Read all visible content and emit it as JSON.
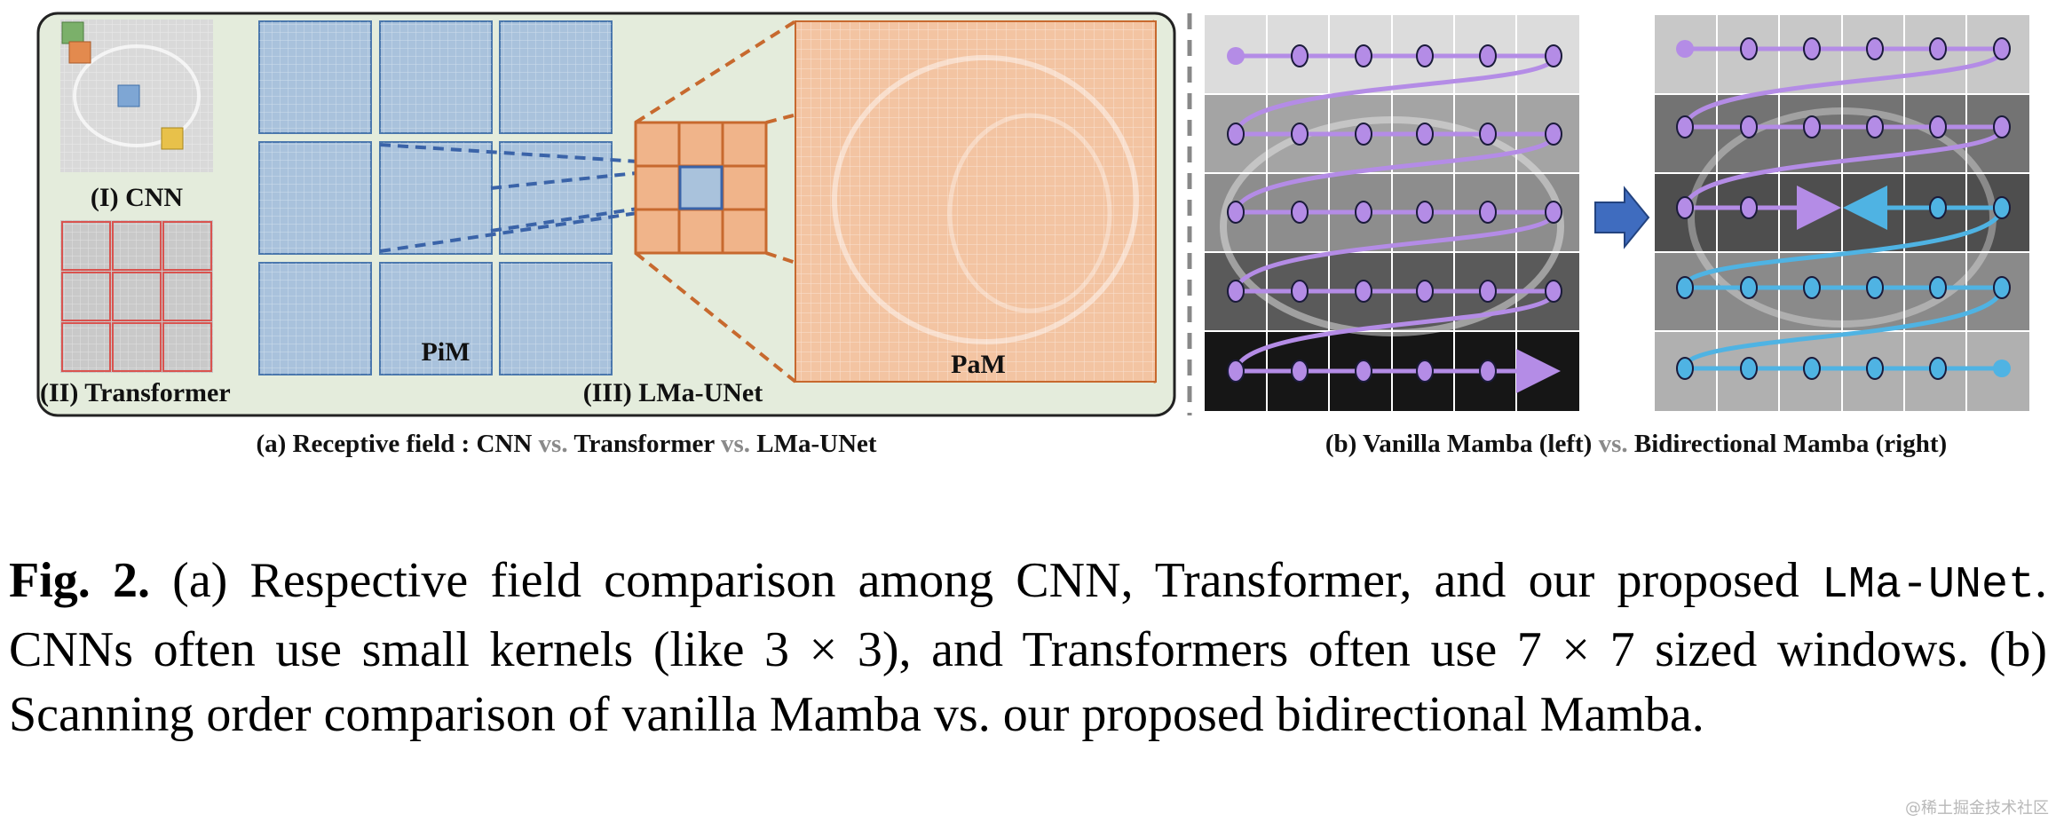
{
  "panel_a": {
    "label_cnn": "(I) CNN",
    "label_transformer": "(II) Transformer",
    "label_pim": "PiM",
    "label_lma": "(III) LMa-UNet",
    "label_pam": "PaM",
    "caption_part1": "(a) Receptive field : CNN",
    "caption_vs1": "vs.",
    "caption_part2": "Transformer",
    "caption_vs2": "vs.",
    "caption_part3": "LMa-UNet"
  },
  "panel_b": {
    "caption_part1": "(b) Vanilla Mamba (left)",
    "caption_vs": "vs.",
    "caption_part2": "Bidirectional Mamba (right)"
  },
  "caption": {
    "fig_num": "Fig. 2.",
    "text1": " (a) Respective field comparison among CNN, Transformer, and our proposed ",
    "code": "LMa-UNet",
    "text2": ". CNNs often use small kernels (like 3 × 3), and Transformers often use 7 × 7 sized windows. (b) Scanning order comparison of vanilla Mamba vs. our proposed bidirectional Mamba."
  },
  "watermark": "@稀土掘金技术社区",
  "colors": {
    "panel_bg": "#e4ecdc",
    "tile_blue": "#a9c2dc",
    "orange": "#f0b48a",
    "purple": "#b48ce6",
    "cyan": "#4fb3e3"
  }
}
